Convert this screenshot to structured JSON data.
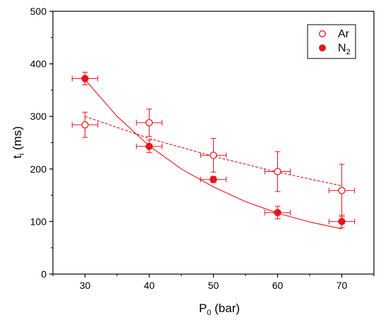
{
  "chart_data": {
    "type": "scatter",
    "xlabel": {
      "main": "P",
      "sub": "0",
      "unit": " (bar)"
    },
    "ylabel": {
      "main": "t",
      "sub": "i",
      "unit": " (ms)"
    },
    "xlim": [
      25,
      75
    ],
    "ylim": [
      0,
      500
    ],
    "xticks": [
      30,
      40,
      50,
      60,
      70
    ],
    "yticks": [
      0,
      100,
      200,
      300,
      400,
      500
    ],
    "grid": false,
    "legend_position": "top-right",
    "color": "#e8141b",
    "series": [
      {
        "name": "Ar",
        "marker": "open-circle",
        "fit": "dashed",
        "x": [
          30,
          40,
          50,
          60,
          70
        ],
        "y": [
          284,
          288,
          226,
          195,
          159
        ],
        "yerr": [
          24,
          26,
          32,
          38,
          50
        ],
        "xerr": [
          2,
          2,
          2,
          2,
          2
        ],
        "fit_curve": {
          "x": [
            30,
            40,
            50,
            60,
            70
          ],
          "y": [
            300,
            258,
            224,
            194,
            168
          ]
        }
      },
      {
        "name": "N",
        "name_sub": "2",
        "marker": "filled-circle",
        "fit": "solid",
        "x": [
          30,
          40,
          50,
          60,
          70
        ],
        "y": [
          372,
          243,
          180,
          117,
          100
        ],
        "yerr": [
          12,
          12,
          6,
          12,
          12
        ],
        "xerr": [
          2,
          2,
          2,
          2,
          2
        ],
        "fit_curve": {
          "x": [
            30,
            35,
            40,
            45,
            50,
            55,
            60,
            65,
            70
          ],
          "y": [
            370,
            300,
            244,
            200,
            166,
            138,
            116,
            99,
            86
          ]
        }
      }
    ]
  }
}
